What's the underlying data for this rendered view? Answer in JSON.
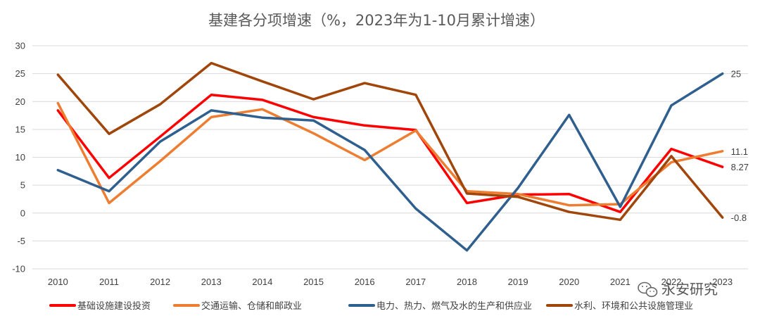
{
  "chart_data": {
    "type": "line",
    "title": "基建各分项增速（%，2023年为1-10月累计增速）",
    "categories": [
      "2010",
      "2011",
      "2012",
      "2013",
      "2014",
      "2015",
      "2016",
      "2017",
      "2018",
      "2019",
      "2020",
      "2021",
      "2022",
      "2023"
    ],
    "ylim": [
      -10,
      30
    ],
    "yticks": [
      -10,
      -5,
      0,
      5,
      10,
      15,
      20,
      25,
      30
    ],
    "grid": true,
    "legend_position": "bottom",
    "series": [
      {
        "name": "基础设施建设投资",
        "color": "#ff0000",
        "values": [
          18.4,
          6.3,
          13.7,
          21.2,
          20.3,
          17.2,
          15.7,
          14.9,
          1.8,
          3.3,
          3.4,
          0.2,
          11.5,
          8.27
        ],
        "end_label": "8.27"
      },
      {
        "name": "交通运输、仓储和邮政业",
        "color": "#ed7d31",
        "values": [
          19.7,
          1.8,
          9.3,
          17.2,
          18.6,
          14.3,
          9.5,
          14.8,
          3.9,
          3.4,
          1.4,
          1.6,
          9.1,
          11.1
        ],
        "end_label": "11.1"
      },
      {
        "name": "电力、热力、燃气及水的生产和供应业",
        "color": "#2e5f8f",
        "values": [
          7.7,
          3.9,
          12.8,
          18.4,
          17.1,
          16.6,
          11.3,
          0.8,
          -6.7,
          4.5,
          17.6,
          1.1,
          19.3,
          25.0
        ],
        "end_label": "25"
      },
      {
        "name": "水利、环境和公共设施管理业",
        "color": "#a0460a",
        "values": [
          24.8,
          14.2,
          19.5,
          26.9,
          23.6,
          20.4,
          23.3,
          21.2,
          3.5,
          2.9,
          0.2,
          -1.2,
          10.2,
          -0.8
        ],
        "end_label": "-0.8"
      }
    ]
  },
  "watermark": {
    "text": "永安研究",
    "icon": "wechat-icon"
  }
}
